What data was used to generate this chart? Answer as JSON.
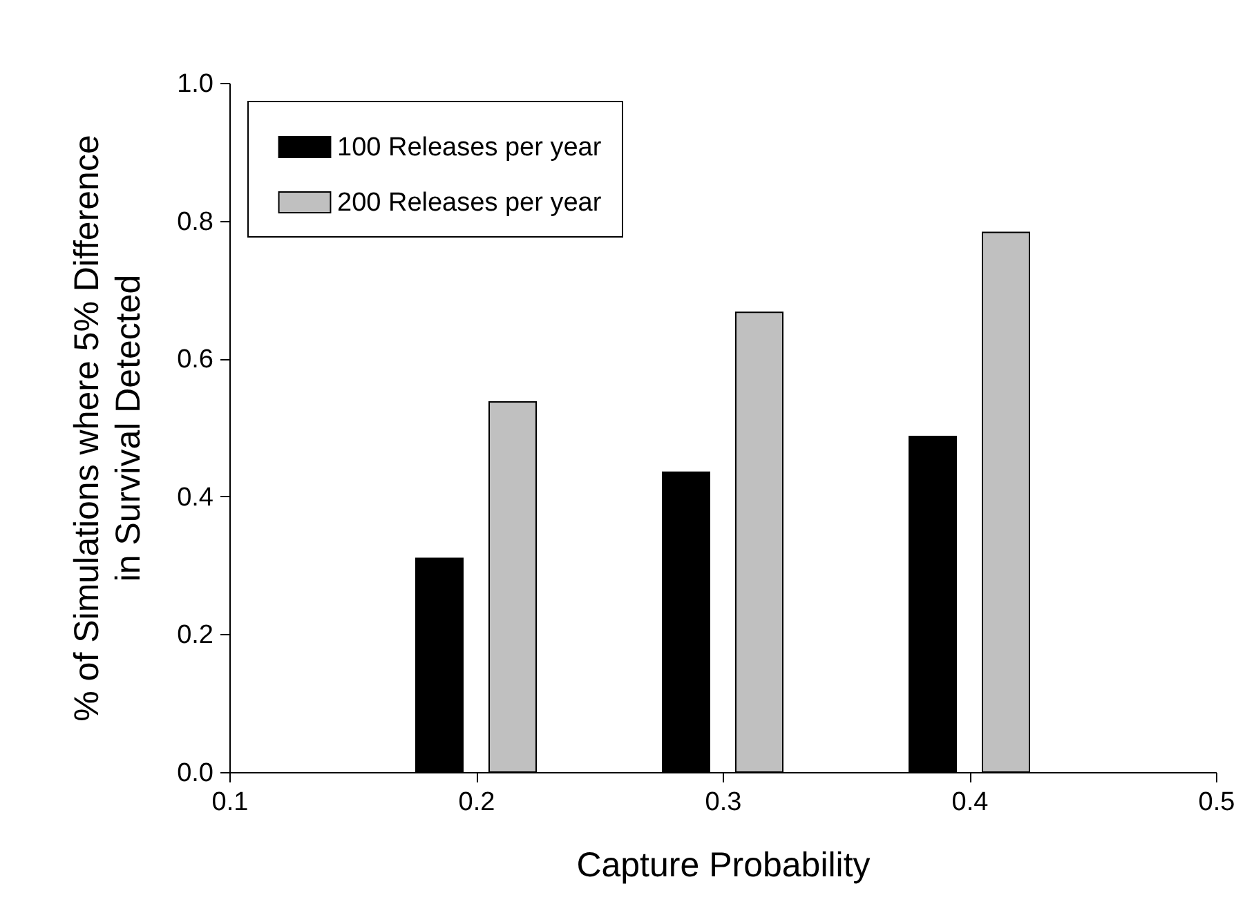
{
  "chart_data": {
    "type": "bar",
    "xlabel": "Capture Probability",
    "ylabel": "% of Simulations where 5% Difference\nin Survival Detected",
    "x": [
      0.2,
      0.3,
      0.4
    ],
    "series": [
      {
        "name": "100 Releases per year",
        "color": "#000000",
        "values": [
          0.31,
          0.435,
          0.487
        ]
      },
      {
        "name": "200 Releases per year",
        "color": "#c0c0c0",
        "values": [
          0.537,
          0.667,
          0.783
        ]
      }
    ],
    "xlim": [
      0.1,
      0.5
    ],
    "xticks": [
      {
        "value": 0.1,
        "label": "0.1"
      },
      {
        "value": 0.2,
        "label": "0.2"
      },
      {
        "value": 0.3,
        "label": "0.3"
      },
      {
        "value": 0.4,
        "label": "0.4"
      },
      {
        "value": 0.5,
        "label": "0.5"
      }
    ],
    "ylim": [
      0,
      1
    ],
    "yticks": [
      {
        "value": 0,
        "label": "0.0"
      },
      {
        "value": 0.2,
        "label": "0.2"
      },
      {
        "value": 0.4,
        "label": "0.4"
      },
      {
        "value": 0.6,
        "label": "0.6"
      },
      {
        "value": 0.8,
        "label": "0.8"
      },
      {
        "value": 1,
        "label": "1.0"
      }
    ],
    "legend": "top left",
    "grid": false
  }
}
